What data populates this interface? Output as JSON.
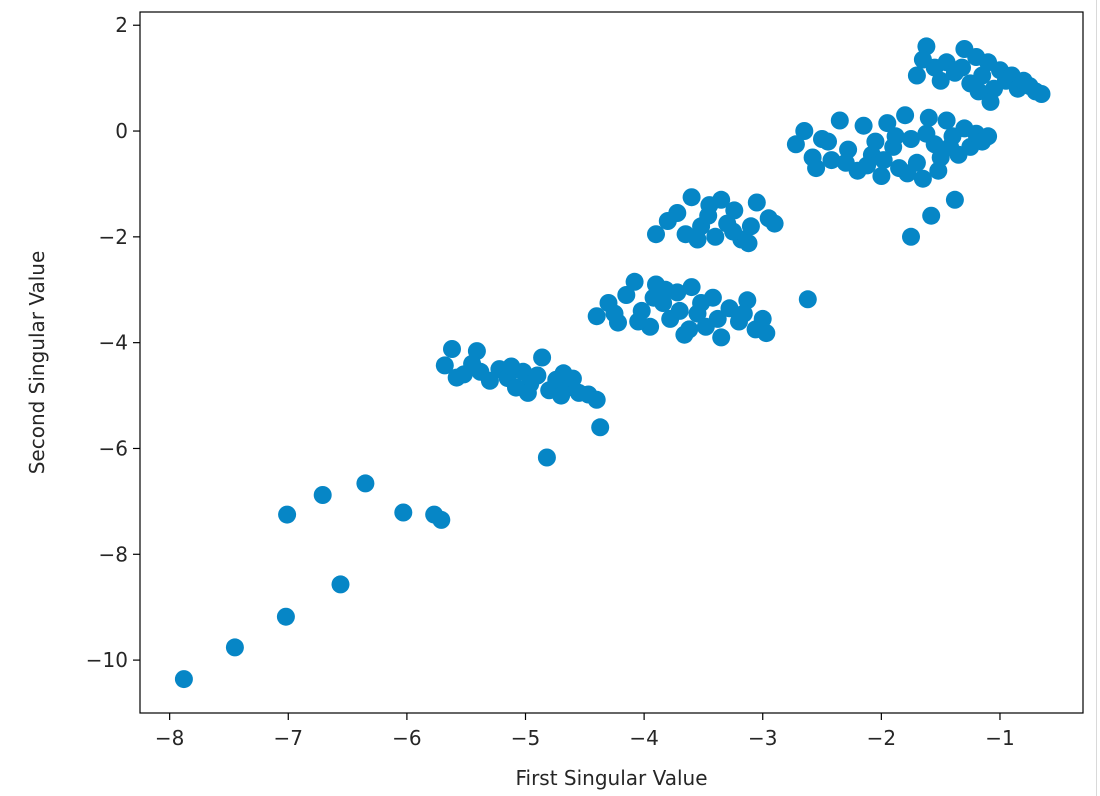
{
  "chart_data": {
    "type": "scatter",
    "title": "",
    "xlabel": "First Singular Value",
    "ylabel": "Second Singular Value",
    "xlim": [
      -8.25,
      -0.3
    ],
    "ylim": [
      -11.0,
      2.25
    ],
    "xticks": [
      -8,
      -7,
      -6,
      -5,
      -4,
      -3,
      -2,
      -1
    ],
    "xtick_labels": [
      "−8",
      "−7",
      "−6",
      "−5",
      "−4",
      "−3",
      "−2",
      "−1"
    ],
    "yticks": [
      2,
      0,
      -2,
      -4,
      -6,
      -8,
      -10
    ],
    "ytick_labels": [
      "2",
      "0",
      "−2",
      "−4",
      "−6",
      "−8",
      "−10"
    ],
    "grid": false,
    "legend": "none",
    "marker_color": "#0686c6",
    "series": [
      {
        "points": [
          [
            -7.88,
            -10.36
          ],
          [
            -7.45,
            -9.76
          ],
          [
            -7.02,
            -9.18
          ],
          [
            -6.56,
            -8.57
          ],
          [
            -7.01,
            -7.25
          ],
          [
            -6.71,
            -6.88
          ],
          [
            -6.35,
            -6.66
          ],
          [
            -6.03,
            -7.21
          ],
          [
            -5.77,
            -7.25
          ],
          [
            -5.71,
            -7.35
          ],
          [
            -4.82,
            -6.17
          ],
          [
            -4.37,
            -5.6
          ],
          [
            -5.68,
            -4.43
          ],
          [
            -5.62,
            -4.12
          ],
          [
            -5.52,
            -4.6
          ],
          [
            -5.41,
            -4.16
          ],
          [
            -5.38,
            -4.55
          ],
          [
            -5.3,
            -4.72
          ],
          [
            -5.22,
            -4.5
          ],
          [
            -5.15,
            -4.67
          ],
          [
            -5.08,
            -4.85
          ],
          [
            -5.02,
            -4.55
          ],
          [
            -4.96,
            -4.78
          ],
          [
            -4.9,
            -4.62
          ],
          [
            -4.86,
            -4.28
          ],
          [
            -4.8,
            -4.9
          ],
          [
            -4.74,
            -4.7
          ],
          [
            -4.68,
            -4.58
          ],
          [
            -4.62,
            -4.84
          ],
          [
            -4.55,
            -4.95
          ],
          [
            -4.47,
            -4.98
          ],
          [
            -4.4,
            -5.08
          ],
          [
            -5.58,
            -4.66
          ],
          [
            -5.45,
            -4.4
          ],
          [
            -5.12,
            -4.45
          ],
          [
            -4.98,
            -4.95
          ],
          [
            -4.7,
            -5.0
          ],
          [
            -4.6,
            -4.68
          ],
          [
            -4.4,
            -3.5
          ],
          [
            -4.3,
            -3.25
          ],
          [
            -4.22,
            -3.62
          ],
          [
            -4.15,
            -3.1
          ],
          [
            -4.08,
            -2.85
          ],
          [
            -4.02,
            -3.4
          ],
          [
            -3.95,
            -3.7
          ],
          [
            -3.9,
            -2.9
          ],
          [
            -3.84,
            -3.25
          ],
          [
            -3.78,
            -3.55
          ],
          [
            -3.72,
            -3.05
          ],
          [
            -3.66,
            -3.85
          ],
          [
            -3.6,
            -2.95
          ],
          [
            -3.55,
            -3.45
          ],
          [
            -3.48,
            -3.7
          ],
          [
            -3.42,
            -3.15
          ],
          [
            -3.35,
            -3.9
          ],
          [
            -3.28,
            -3.35
          ],
          [
            -3.2,
            -3.6
          ],
          [
            -3.13,
            -3.2
          ],
          [
            -3.06,
            -3.75
          ],
          [
            -3.0,
            -3.55
          ],
          [
            -2.97,
            -3.82
          ],
          [
            -3.92,
            -3.15
          ],
          [
            -3.7,
            -3.4
          ],
          [
            -3.52,
            -3.25
          ],
          [
            -3.38,
            -3.55
          ],
          [
            -3.62,
            -3.75
          ],
          [
            -4.25,
            -3.45
          ],
          [
            -4.05,
            -3.6
          ],
          [
            -3.82,
            -3.0
          ],
          [
            -3.16,
            -3.45
          ],
          [
            -3.9,
            -1.95
          ],
          [
            -3.8,
            -1.7
          ],
          [
            -3.72,
            -1.55
          ],
          [
            -3.65,
            -1.95
          ],
          [
            -3.6,
            -1.25
          ],
          [
            -3.52,
            -1.8
          ],
          [
            -3.46,
            -1.6
          ],
          [
            -3.4,
            -2.0
          ],
          [
            -3.35,
            -1.3
          ],
          [
            -3.3,
            -1.75
          ],
          [
            -3.24,
            -1.5
          ],
          [
            -3.18,
            -2.05
          ],
          [
            -3.1,
            -1.8
          ],
          [
            -3.05,
            -1.35
          ],
          [
            -2.95,
            -1.65
          ],
          [
            -2.9,
            -1.75
          ],
          [
            -3.55,
            -2.05
          ],
          [
            -3.45,
            -1.4
          ],
          [
            -3.25,
            -1.9
          ],
          [
            -3.12,
            -2.12
          ],
          [
            -2.62,
            -3.18
          ],
          [
            -1.75,
            -2.0
          ],
          [
            -1.58,
            -1.6
          ],
          [
            -1.38,
            -1.3
          ],
          [
            -2.72,
            -0.25
          ],
          [
            -2.65,
            0.0
          ],
          [
            -2.58,
            -0.5
          ],
          [
            -2.5,
            -0.15
          ],
          [
            -2.42,
            -0.55
          ],
          [
            -2.35,
            0.2
          ],
          [
            -2.28,
            -0.35
          ],
          [
            -2.2,
            -0.75
          ],
          [
            -2.15,
            0.1
          ],
          [
            -2.08,
            -0.45
          ],
          [
            -2.0,
            -0.85
          ],
          [
            -1.95,
            0.15
          ],
          [
            -1.9,
            -0.3
          ],
          [
            -1.85,
            -0.7
          ],
          [
            -1.8,
            0.3
          ],
          [
            -1.75,
            -0.15
          ],
          [
            -1.7,
            -0.6
          ],
          [
            -1.65,
            -0.9
          ],
          [
            -1.6,
            0.25
          ],
          [
            -1.55,
            -0.25
          ],
          [
            -1.5,
            -0.5
          ],
          [
            -1.45,
            0.2
          ],
          [
            -1.4,
            -0.1
          ],
          [
            -1.35,
            -0.45
          ],
          [
            -1.3,
            0.05
          ],
          [
            -1.25,
            -0.3
          ],
          [
            -1.2,
            -0.05
          ],
          [
            -1.15,
            -0.2
          ],
          [
            -1.1,
            -0.1
          ],
          [
            -2.45,
            -0.2
          ],
          [
            -2.3,
            -0.6
          ],
          [
            -2.05,
            -0.2
          ],
          [
            -1.98,
            -0.55
          ],
          [
            -1.78,
            -0.8
          ],
          [
            -1.62,
            -0.05
          ],
          [
            -1.52,
            -0.75
          ],
          [
            -2.55,
            -0.7
          ],
          [
            -2.12,
            -0.65
          ],
          [
            -1.88,
            -0.1
          ],
          [
            -1.42,
            -0.3
          ],
          [
            -1.62,
            1.6
          ],
          [
            -1.55,
            1.2
          ],
          [
            -1.65,
            1.35
          ],
          [
            -1.7,
            1.05
          ],
          [
            -1.5,
            0.95
          ],
          [
            -1.45,
            1.3
          ],
          [
            -1.38,
            1.1
          ],
          [
            -1.3,
            1.55
          ],
          [
            -1.25,
            0.9
          ],
          [
            -1.2,
            1.4
          ],
          [
            -1.15,
            1.05
          ],
          [
            -1.1,
            1.3
          ],
          [
            -1.05,
            0.8
          ],
          [
            -1.0,
            1.15
          ],
          [
            -0.95,
            0.95
          ],
          [
            -0.9,
            1.05
          ],
          [
            -0.85,
            0.8
          ],
          [
            -0.8,
            0.95
          ],
          [
            -0.75,
            0.85
          ],
          [
            -0.7,
            0.75
          ],
          [
            -0.65,
            0.7
          ],
          [
            -1.08,
            0.55
          ],
          [
            -1.32,
            1.2
          ],
          [
            -1.18,
            0.75
          ]
        ]
      }
    ]
  }
}
